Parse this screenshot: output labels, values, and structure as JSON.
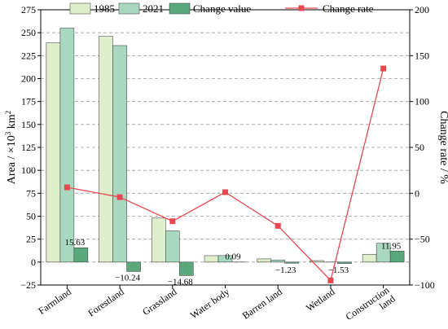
{
  "chart_data": {
    "type": "bar",
    "categories": [
      "Farmland",
      "Forestland",
      "Grassland",
      "Water body",
      "Barren land",
      "Wetland",
      "Construction land"
    ],
    "series": [
      {
        "name": "1985",
        "axis": "left",
        "kind": "bar",
        "color": "#e0efcb",
        "values": [
          239,
          246,
          48,
          7,
          3.5,
          1.6,
          8.5
        ]
      },
      {
        "name": "2021",
        "axis": "left",
        "kind": "bar",
        "color": "#a8d9c0",
        "values": [
          255,
          236,
          34,
          7.1,
          2.3,
          0.1,
          20.5
        ]
      },
      {
        "name": "Change value",
        "axis": "left",
        "kind": "bar",
        "color": "#5aa97d",
        "values": [
          15.63,
          -10.24,
          -14.68,
          0.09,
          -1.23,
          -1.53,
          11.95
        ]
      },
      {
        "name": "Change rate",
        "axis": "right",
        "kind": "line",
        "color": "#e8474f",
        "values": [
          6.5,
          -4.2,
          -30.5,
          1.2,
          -35.5,
          -95,
          136
        ]
      }
    ],
    "data_labels": [
      "15.63",
      "−10.24",
      "−14.68",
      "0.09",
      "−1.23",
      "−1.53",
      "11.95"
    ],
    "ylabel": "Area / ×10",
    "ylabel_sup": "3",
    "ylabel_unit": " km",
    "ylabel_unit_sup": "2",
    "y2label": "Change rate / %",
    "ylim": [
      -25,
      275
    ],
    "yticks": [
      -25,
      0,
      25,
      50,
      75,
      100,
      125,
      150,
      175,
      200,
      225,
      250,
      275
    ],
    "y2lim": [
      -100,
      200
    ],
    "y2ticks": [
      -100,
      -50,
      0,
      50,
      100,
      150,
      200
    ],
    "grid": "horizontal dashed",
    "legend_position": "top"
  }
}
